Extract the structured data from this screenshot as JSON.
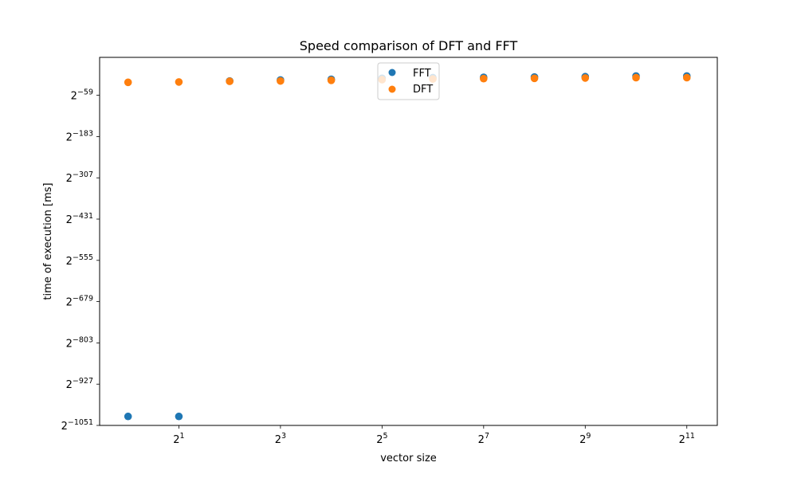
{
  "chart_data": {
    "type": "scatter",
    "title": "Speed comparison of DFT and FFT",
    "xlabel": "vector size",
    "ylabel": "time of execution [ms]",
    "x_scale": "log2",
    "y_scale": "log2",
    "xlim_log2": [
      -0.56,
      11.6
    ],
    "ylim_log2": [
      -1051,
      55
    ],
    "x_ticks": [
      {
        "exp": 1,
        "base": "2",
        "sup": "1"
      },
      {
        "exp": 3,
        "base": "2",
        "sup": "3"
      },
      {
        "exp": 5,
        "base": "2",
        "sup": "5"
      },
      {
        "exp": 7,
        "base": "2",
        "sup": "7"
      },
      {
        "exp": 9,
        "base": "2",
        "sup": "9"
      },
      {
        "exp": 11,
        "base": "2",
        "sup": "11"
      }
    ],
    "y_ticks": [
      {
        "exp": -59,
        "base": "2",
        "sup": "−59"
      },
      {
        "exp": -183,
        "base": "2",
        "sup": "−183"
      },
      {
        "exp": -307,
        "base": "2",
        "sup": "−307"
      },
      {
        "exp": -431,
        "base": "2",
        "sup": "−431"
      },
      {
        "exp": -555,
        "base": "2",
        "sup": "−555"
      },
      {
        "exp": -679,
        "base": "2",
        "sup": "−679"
      },
      {
        "exp": -803,
        "base": "2",
        "sup": "−803"
      },
      {
        "exp": -927,
        "base": "2",
        "sup": "−927"
      },
      {
        "exp": -1051,
        "base": "2",
        "sup": "−1051"
      }
    ],
    "legend_position": "top-center",
    "grid": false,
    "series": [
      {
        "name": "FFT",
        "color": "#1f77b4",
        "x_log2": [
          0,
          1,
          2,
          3,
          4,
          5,
          6,
          7,
          8,
          9,
          10,
          11
        ],
        "y_log2": [
          -1024,
          -1024,
          -16,
          -13,
          -11,
          -8,
          -6,
          -5,
          -4,
          -3,
          -1,
          -1
        ]
      },
      {
        "name": "DFT",
        "color": "#ff7f0e",
        "x_log2": [
          0,
          1,
          2,
          3,
          4,
          5,
          6,
          7,
          8,
          9,
          10,
          11
        ],
        "y_log2": [
          -20,
          -19,
          -17,
          -16,
          -14,
          -12,
          -10,
          -9,
          -8,
          -7,
          -6,
          -6
        ]
      }
    ]
  }
}
